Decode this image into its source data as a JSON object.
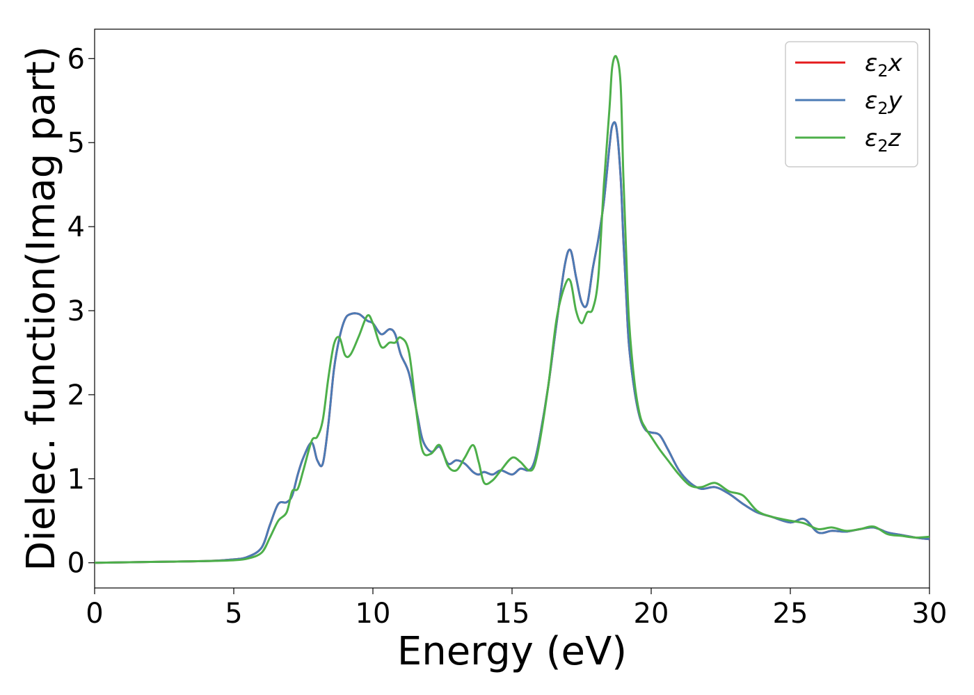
{
  "chart_data": {
    "type": "line",
    "title": "",
    "xlabel": "Energy (eV)",
    "ylabel": "Dielec. function(Imag part)",
    "xlim": [
      0,
      30
    ],
    "ylim": [
      -0.3,
      6.35
    ],
    "xticks": [
      0,
      5,
      10,
      15,
      20,
      25,
      30
    ],
    "yticks": [
      0,
      1,
      2,
      3,
      4,
      5,
      6
    ],
    "grid": false,
    "legend_position": "top-right",
    "series": [
      {
        "name": "ε2x",
        "legend_base": "ε",
        "legend_sub": "2",
        "legend_suffix": "x",
        "color": "#e41a1c",
        "x": [
          0,
          2,
          4,
          5,
          5.5,
          6,
          6.3,
          6.6,
          6.9,
          7.1,
          7.3,
          7.5,
          7.8,
          8.0,
          8.2,
          8.4,
          8.6,
          8.8,
          9.0,
          9.2,
          9.5,
          9.8,
          10.0,
          10.3,
          10.6,
          10.8,
          11.0,
          11.3,
          11.6,
          11.8,
          12.1,
          12.4,
          12.7,
          13.0,
          13.3,
          13.6,
          13.8,
          14.0,
          14.3,
          14.6,
          15.0,
          15.3,
          15.6,
          15.8,
          16.0,
          16.3,
          16.6,
          16.9,
          17.1,
          17.3,
          17.5,
          17.7,
          17.9,
          18.1,
          18.3,
          18.5,
          18.6,
          18.75,
          18.9,
          19.0,
          19.1,
          19.2,
          19.4,
          19.6,
          19.8,
          20.0,
          20.3,
          20.6,
          21.0,
          21.4,
          21.8,
          22.3,
          22.8,
          23.3,
          23.8,
          24.3,
          25.0,
          25.5,
          26.0,
          26.5,
          27.0,
          27.5,
          28.0,
          28.5,
          29.0,
          29.5,
          30.0
        ],
        "values": [
          0.0,
          0.01,
          0.02,
          0.04,
          0.07,
          0.18,
          0.45,
          0.7,
          0.72,
          0.8,
          1.05,
          1.25,
          1.43,
          1.22,
          1.18,
          1.65,
          2.3,
          2.68,
          2.9,
          2.96,
          2.96,
          2.88,
          2.85,
          2.72,
          2.78,
          2.72,
          2.48,
          2.25,
          1.75,
          1.45,
          1.32,
          1.38,
          1.18,
          1.22,
          1.18,
          1.08,
          1.05,
          1.08,
          1.05,
          1.1,
          1.05,
          1.12,
          1.1,
          1.2,
          1.5,
          2.1,
          2.85,
          3.55,
          3.72,
          3.4,
          3.1,
          3.08,
          3.5,
          3.85,
          4.3,
          4.95,
          5.2,
          5.18,
          4.6,
          3.85,
          3.2,
          2.6,
          2.05,
          1.72,
          1.58,
          1.55,
          1.52,
          1.35,
          1.1,
          0.95,
          0.88,
          0.9,
          0.82,
          0.7,
          0.6,
          0.55,
          0.48,
          0.52,
          0.36,
          0.38,
          0.37,
          0.4,
          0.42,
          0.36,
          0.33,
          0.3,
          0.28
        ]
      },
      {
        "name": "ε2y",
        "legend_base": "ε",
        "legend_sub": "2",
        "legend_suffix": "y",
        "color": "#4b7bb5",
        "x": [
          0,
          2,
          4,
          5,
          5.5,
          6,
          6.3,
          6.6,
          6.9,
          7.1,
          7.3,
          7.5,
          7.8,
          8.0,
          8.2,
          8.4,
          8.6,
          8.8,
          9.0,
          9.2,
          9.5,
          9.8,
          10.0,
          10.3,
          10.6,
          10.8,
          11.0,
          11.3,
          11.6,
          11.8,
          12.1,
          12.4,
          12.7,
          13.0,
          13.3,
          13.6,
          13.8,
          14.0,
          14.3,
          14.6,
          15.0,
          15.3,
          15.6,
          15.8,
          16.0,
          16.3,
          16.6,
          16.9,
          17.1,
          17.3,
          17.5,
          17.7,
          17.9,
          18.1,
          18.3,
          18.5,
          18.6,
          18.75,
          18.9,
          19.0,
          19.1,
          19.2,
          19.4,
          19.6,
          19.8,
          20.0,
          20.3,
          20.6,
          21.0,
          21.4,
          21.8,
          22.3,
          22.8,
          23.3,
          23.8,
          24.3,
          25.0,
          25.5,
          26.0,
          26.5,
          27.0,
          27.5,
          28.0,
          28.5,
          29.0,
          29.5,
          30.0
        ],
        "values": [
          0.0,
          0.01,
          0.02,
          0.04,
          0.07,
          0.18,
          0.45,
          0.7,
          0.72,
          0.8,
          1.05,
          1.25,
          1.43,
          1.22,
          1.18,
          1.65,
          2.3,
          2.68,
          2.9,
          2.96,
          2.96,
          2.88,
          2.85,
          2.72,
          2.78,
          2.72,
          2.48,
          2.25,
          1.75,
          1.45,
          1.32,
          1.38,
          1.18,
          1.22,
          1.18,
          1.08,
          1.05,
          1.08,
          1.05,
          1.1,
          1.05,
          1.12,
          1.1,
          1.2,
          1.5,
          2.1,
          2.85,
          3.55,
          3.72,
          3.4,
          3.1,
          3.08,
          3.5,
          3.85,
          4.3,
          4.95,
          5.2,
          5.18,
          4.6,
          3.85,
          3.2,
          2.6,
          2.05,
          1.72,
          1.58,
          1.55,
          1.52,
          1.35,
          1.1,
          0.95,
          0.88,
          0.9,
          0.82,
          0.7,
          0.6,
          0.55,
          0.48,
          0.52,
          0.36,
          0.38,
          0.37,
          0.4,
          0.42,
          0.36,
          0.33,
          0.3,
          0.28
        ]
      },
      {
        "name": "ε2z",
        "legend_base": "ε",
        "legend_sub": "2",
        "legend_suffix": "z",
        "color": "#4daf4a",
        "x": [
          0,
          2,
          4,
          5,
          5.5,
          6,
          6.3,
          6.6,
          6.9,
          7.1,
          7.3,
          7.5,
          7.8,
          8.0,
          8.2,
          8.4,
          8.6,
          8.8,
          9.0,
          9.2,
          9.5,
          9.8,
          10.0,
          10.3,
          10.6,
          10.8,
          11.0,
          11.3,
          11.6,
          11.8,
          12.1,
          12.4,
          12.7,
          13.0,
          13.3,
          13.6,
          13.8,
          14.0,
          14.3,
          14.6,
          15.0,
          15.3,
          15.6,
          15.8,
          16.0,
          16.3,
          16.6,
          16.9,
          17.1,
          17.3,
          17.5,
          17.7,
          17.9,
          18.1,
          18.3,
          18.5,
          18.6,
          18.75,
          18.9,
          19.0,
          19.1,
          19.2,
          19.4,
          19.6,
          19.8,
          20.0,
          20.3,
          20.6,
          21.0,
          21.4,
          21.8,
          22.3,
          22.8,
          23.3,
          23.8,
          24.3,
          25.0,
          25.5,
          26.0,
          26.5,
          27.0,
          27.5,
          28.0,
          28.5,
          29.0,
          29.5,
          30.0
        ],
        "values": [
          0.0,
          0.01,
          0.02,
          0.03,
          0.05,
          0.12,
          0.3,
          0.5,
          0.6,
          0.85,
          0.88,
          1.1,
          1.45,
          1.5,
          1.7,
          2.2,
          2.6,
          2.68,
          2.47,
          2.48,
          2.7,
          2.94,
          2.85,
          2.57,
          2.62,
          2.62,
          2.68,
          2.5,
          1.7,
          1.32,
          1.3,
          1.4,
          1.15,
          1.1,
          1.25,
          1.4,
          1.2,
          0.95,
          0.98,
          1.1,
          1.25,
          1.2,
          1.1,
          1.15,
          1.45,
          2.1,
          2.9,
          3.3,
          3.35,
          3.0,
          2.85,
          2.98,
          3.02,
          3.4,
          4.5,
          5.4,
          5.9,
          6.02,
          5.7,
          4.6,
          3.7,
          2.9,
          2.15,
          1.75,
          1.6,
          1.5,
          1.35,
          1.22,
          1.05,
          0.92,
          0.9,
          0.95,
          0.85,
          0.8,
          0.62,
          0.55,
          0.5,
          0.47,
          0.4,
          0.42,
          0.38,
          0.4,
          0.43,
          0.34,
          0.32,
          0.3,
          0.31
        ]
      }
    ]
  }
}
